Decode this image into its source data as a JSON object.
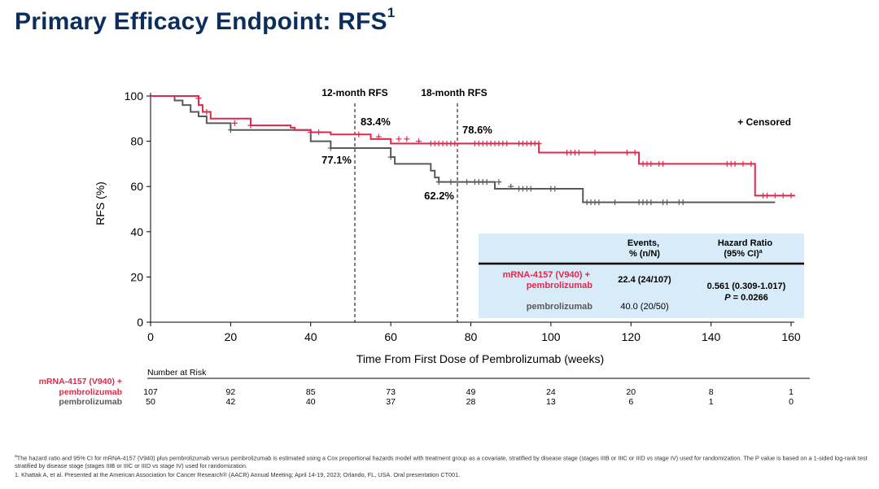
{
  "slide": {
    "title": "Primary Efficacy Endpoint: RFS",
    "title_sup": "1"
  },
  "colors": {
    "title": "#0b2e5c",
    "treatment": "#e0284b",
    "control": "#595959",
    "table_bg": "#d7ebf8"
  },
  "chart_data": {
    "type": "line",
    "subtype": "kaplan-meier",
    "xlabel": "Time From First Dose of Pembrolizumab (weeks)",
    "ylabel": "RFS (%)",
    "xlim": [
      0,
      160
    ],
    "ylim": [
      0,
      100
    ],
    "xticks": [
      0,
      20,
      40,
      60,
      80,
      100,
      120,
      140,
      160
    ],
    "yticks": [
      0,
      20,
      40,
      60,
      80,
      100
    ],
    "legend_text": "+ Censored",
    "series": [
      {
        "name": "mRNA-4157 (V940) + pembrolizumab",
        "color": "#e0284b",
        "steps": [
          [
            0,
            100
          ],
          [
            12,
            99
          ],
          [
            12,
            96
          ],
          [
            13,
            93
          ],
          [
            15,
            90
          ],
          [
            25,
            87
          ],
          [
            35,
            86
          ],
          [
            36,
            85
          ],
          [
            40,
            84
          ],
          [
            45,
            83
          ],
          [
            55,
            83
          ],
          [
            55,
            81
          ],
          [
            60,
            81
          ],
          [
            60,
            79
          ],
          [
            97,
            79
          ],
          [
            97,
            75
          ],
          [
            122,
            75
          ],
          [
            122,
            70
          ],
          [
            151,
            70
          ],
          [
            151,
            56
          ],
          [
            161,
            56
          ]
        ],
        "censored": [
          [
            12,
            99
          ],
          [
            14,
            93
          ],
          [
            21,
            88
          ],
          [
            25,
            87
          ],
          [
            40,
            84
          ],
          [
            42,
            84
          ],
          [
            52,
            83
          ],
          [
            57,
            82
          ],
          [
            62,
            81
          ],
          [
            64,
            81
          ],
          [
            67,
            80
          ],
          [
            70,
            79
          ],
          [
            71,
            79
          ],
          [
            72,
            79
          ],
          [
            73,
            79
          ],
          [
            74,
            79
          ],
          [
            75,
            79
          ],
          [
            76,
            79
          ],
          [
            81,
            79
          ],
          [
            82,
            79
          ],
          [
            83,
            79
          ],
          [
            84,
            79
          ],
          [
            85,
            79
          ],
          [
            86,
            79
          ],
          [
            87,
            79
          ],
          [
            88,
            79
          ],
          [
            89,
            79
          ],
          [
            92,
            79
          ],
          [
            93,
            79
          ],
          [
            94,
            79
          ],
          [
            95,
            79
          ],
          [
            96,
            79
          ],
          [
            97,
            79
          ],
          [
            104,
            75
          ],
          [
            105,
            75
          ],
          [
            106,
            75
          ],
          [
            107,
            75
          ],
          [
            111,
            75
          ],
          [
            119,
            75
          ],
          [
            121,
            75
          ],
          [
            123,
            70
          ],
          [
            124,
            70
          ],
          [
            125,
            70
          ],
          [
            127,
            70
          ],
          [
            128,
            70
          ],
          [
            144,
            70
          ],
          [
            145,
            70
          ],
          [
            146,
            70
          ],
          [
            148,
            70
          ],
          [
            150,
            70
          ],
          [
            153,
            56
          ],
          [
            154,
            56
          ],
          [
            156,
            56
          ],
          [
            158,
            56
          ],
          [
            160,
            56
          ]
        ]
      },
      {
        "name": "pembrolizumab",
        "color": "#595959",
        "steps": [
          [
            0,
            100
          ],
          [
            6,
            98
          ],
          [
            8,
            96
          ],
          [
            10,
            93
          ],
          [
            12,
            91
          ],
          [
            14,
            88
          ],
          [
            20,
            87
          ],
          [
            20,
            85
          ],
          [
            40,
            85
          ],
          [
            40,
            80
          ],
          [
            45,
            80
          ],
          [
            45,
            77
          ],
          [
            60,
            77
          ],
          [
            60,
            73
          ],
          [
            61,
            73
          ],
          [
            61,
            70
          ],
          [
            70,
            70
          ],
          [
            70,
            67
          ],
          [
            71,
            67
          ],
          [
            71,
            64
          ],
          [
            72,
            64
          ],
          [
            72,
            62
          ],
          [
            86,
            62
          ],
          [
            86,
            59
          ],
          [
            108,
            59
          ],
          [
            108,
            53
          ],
          [
            156,
            53
          ]
        ],
        "censored": [
          [
            20,
            85
          ],
          [
            45,
            77
          ],
          [
            60,
            73
          ],
          [
            72,
            62
          ],
          [
            75,
            62
          ],
          [
            79,
            62
          ],
          [
            81,
            62
          ],
          [
            82,
            62
          ],
          [
            83,
            62
          ],
          [
            84,
            62
          ],
          [
            87,
            62
          ],
          [
            90,
            60
          ],
          [
            92,
            59
          ],
          [
            93,
            59
          ],
          [
            94,
            59
          ],
          [
            95,
            59
          ],
          [
            100,
            59
          ],
          [
            101,
            59
          ],
          [
            109,
            53
          ],
          [
            110,
            53
          ],
          [
            111,
            53
          ],
          [
            112,
            53
          ],
          [
            116,
            53
          ],
          [
            122,
            53
          ],
          [
            123,
            53
          ],
          [
            124,
            53
          ],
          [
            125,
            53
          ],
          [
            128,
            53
          ],
          [
            129,
            53
          ],
          [
            132,
            53
          ],
          [
            133,
            53
          ]
        ]
      }
    ],
    "reference_lines": [
      {
        "x": 51,
        "label": "12-month RFS",
        "treatment_value": "83.4%",
        "control_value": "77.1%"
      },
      {
        "x": 77,
        "label": "18-month RFS",
        "treatment_value": "78.6%",
        "control_value": "62.2%"
      }
    ]
  },
  "summary_table": {
    "header_events": "Events,\n% (n/N)",
    "header_hr": "Hazard Ratio\n(95% CI)",
    "header_hr_sup": "a",
    "treatment_label": "mRNA-4157 (V940) +\npembrolizumab",
    "treatment_events": "22.4 (24/107)",
    "control_label": "pembrolizumab",
    "control_events": "40.0 (20/50)",
    "hazard_ratio": "0.561 (0.309-1.017)",
    "p_value_label": "P",
    "p_value": " = 0.0266"
  },
  "number_at_risk": {
    "heading": "Number at Risk",
    "treatment_label_line1": "mRNA-4157 (V940) +",
    "treatment_label_line2": "pembrolizumab",
    "control_label": "pembrolizumab",
    "timepoints": [
      0,
      20,
      40,
      60,
      80,
      100,
      120,
      140,
      160
    ],
    "treatment": [
      "107",
      "92",
      "85",
      "73",
      "49",
      "24",
      "20",
      "8",
      "1"
    ],
    "control": [
      "50",
      "42",
      "40",
      "37",
      "28",
      "13",
      "6",
      "1",
      "0"
    ]
  },
  "footnotes": {
    "line_a": "The hazard ratio and 95% CI for mRNA-4157 (V940) plus pembrolizumab versus pembrolizumab is estimated using a Cox proportional hazards model with treatment group as a covariate, stratified by disease stage (stages IIIB or IIIC or IIID vs stage IV) used for randomization. The P value is based on a 1-sided log-rank test stratified by disease stage (stages IIIB or IIIC or IIID vs stage IV) used for randomization.",
    "line_a_marker": "a",
    "line_1": "1. Khattak A, et al. Presented at the American Association for Cancer Research® (AACR) Annual Meeting; April 14-19, 2023; Orlando, FL, USA. Oral presentation CT001."
  }
}
